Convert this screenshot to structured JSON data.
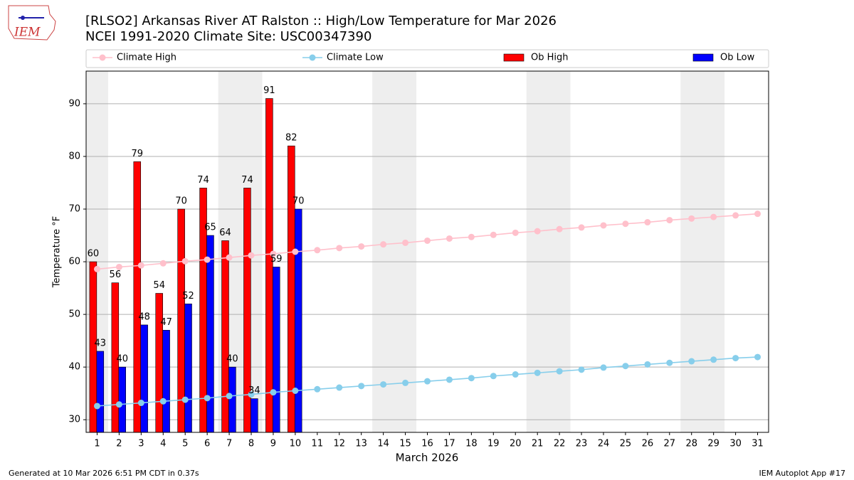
{
  "chart_data": {
    "type": "bar",
    "title": "[RLSO2] Arkansas River  AT Ralston :: High/Low Temperature for Mar 2026",
    "subtitle": "NCEI 1991-2020 Climate Site: USC00347390",
    "logo_text": "IEM",
    "xlabel": "March 2026",
    "ylabel": "Temperature °F",
    "footer_left": "Generated at 10 Mar 2026 6:51 PM CDT in 0.37s",
    "footer_right": "IEM Autoplot App #17",
    "x": [
      1,
      2,
      3,
      4,
      5,
      6,
      7,
      8,
      9,
      10,
      11,
      12,
      13,
      14,
      15,
      16,
      17,
      18,
      19,
      20,
      21,
      22,
      23,
      24,
      25,
      26,
      27,
      28,
      29,
      30,
      31
    ],
    "xticks": [
      1,
      2,
      3,
      4,
      5,
      6,
      7,
      8,
      9,
      10,
      11,
      12,
      13,
      14,
      15,
      16,
      17,
      18,
      19,
      20,
      21,
      22,
      23,
      24,
      25,
      26,
      27,
      28,
      29,
      30,
      31
    ],
    "xlim": [
      0.5,
      31.5
    ],
    "ylim": [
      27.6,
      96.2
    ],
    "yticks": [
      30,
      40,
      50,
      60,
      70,
      80,
      90
    ],
    "grid": true,
    "weekend_bands": [
      [
        0.5,
        1.5
      ],
      [
        6.5,
        8.5
      ],
      [
        13.5,
        15.5
      ],
      [
        20.5,
        22.5
      ],
      [
        27.5,
        29.5
      ]
    ],
    "series": [
      {
        "name": "Climate High",
        "type": "line",
        "color": "#ffc0cb",
        "values": [
          58.6,
          59.0,
          59.3,
          59.7,
          60.1,
          60.4,
          60.8,
          61.2,
          61.5,
          61.9,
          62.2,
          62.6,
          62.9,
          63.3,
          63.6,
          64.0,
          64.4,
          64.7,
          65.1,
          65.5,
          65.8,
          66.2,
          66.5,
          66.9,
          67.2,
          67.5,
          67.9,
          68.2,
          68.5,
          68.8,
          69.1
        ]
      },
      {
        "name": "Climate Low",
        "type": "line",
        "color": "#87ceeb",
        "values": [
          32.6,
          32.9,
          33.2,
          33.5,
          33.8,
          34.1,
          34.5,
          34.8,
          35.2,
          35.5,
          35.8,
          36.1,
          36.4,
          36.7,
          37.0,
          37.3,
          37.6,
          37.9,
          38.3,
          38.6,
          38.9,
          39.2,
          39.5,
          39.9,
          40.2,
          40.5,
          40.8,
          41.1,
          41.4,
          41.7,
          41.9
        ]
      },
      {
        "name": "Ob High",
        "type": "bar",
        "color": "#ff0000",
        "values": [
          60,
          56,
          79,
          54,
          70,
          74,
          64,
          74,
          91,
          82,
          null,
          null,
          null,
          null,
          null,
          null,
          null,
          null,
          null,
          null,
          null,
          null,
          null,
          null,
          null,
          null,
          null,
          null,
          null,
          null,
          null
        ]
      },
      {
        "name": "Ob Low",
        "type": "bar",
        "color": "#0000ff",
        "values": [
          43,
          40,
          48,
          47,
          52,
          65,
          40,
          34,
          59,
          70,
          null,
          null,
          null,
          null,
          null,
          null,
          null,
          null,
          null,
          null,
          null,
          null,
          null,
          null,
          null,
          null,
          null,
          null,
          null,
          null,
          null
        ]
      }
    ]
  }
}
